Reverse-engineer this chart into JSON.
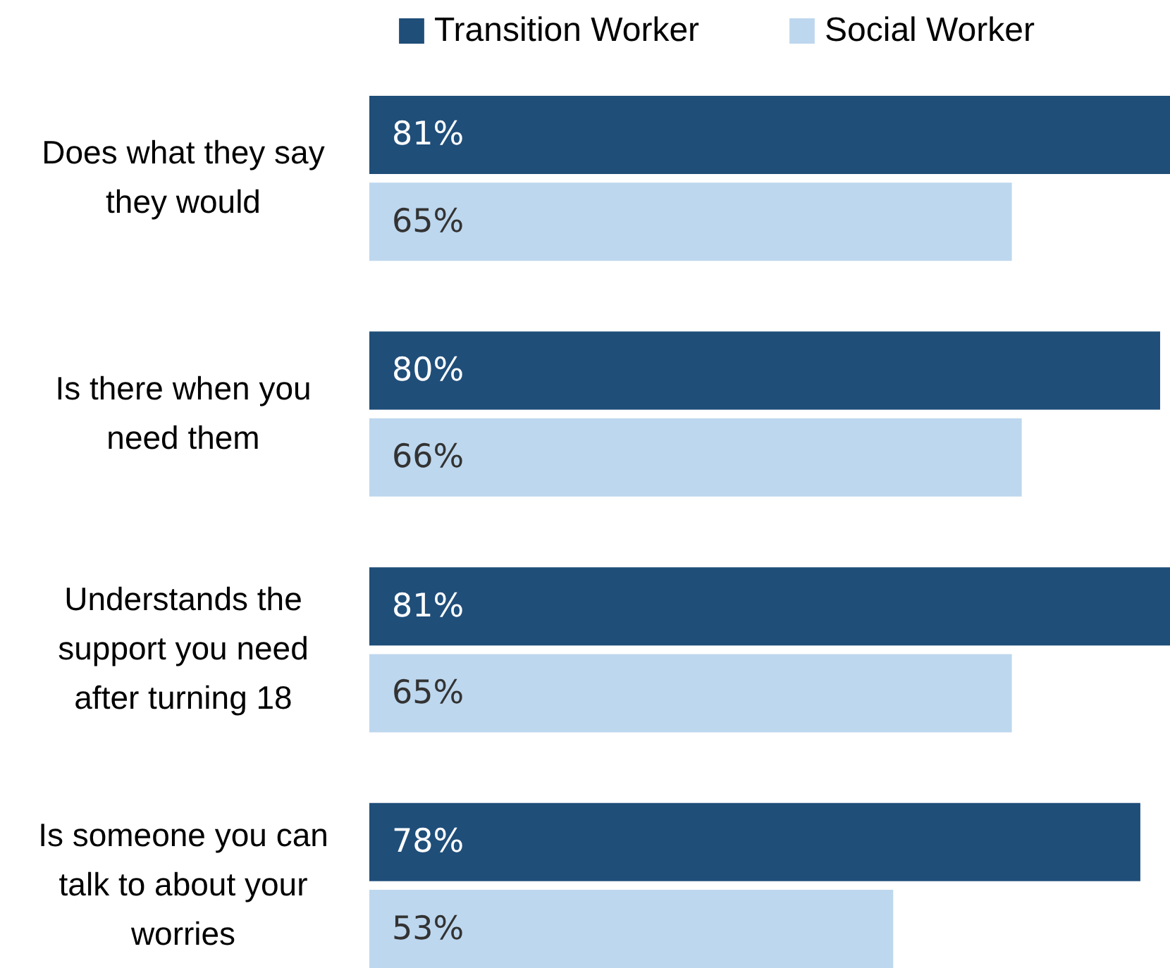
{
  "chart_data": {
    "type": "bar",
    "orientation": "horizontal",
    "legend": "top",
    "categories": [
      "Does what they say they would",
      "Is there when you need them",
      "Understands the support you need after turning 18",
      "Is someone you can talk to about your worries"
    ],
    "series": [
      {
        "name": "Transition Worker",
        "color": "#1f4e79",
        "values": [
          81,
          80,
          81,
          78
        ],
        "value_labels": [
          "81%",
          "80%",
          "81%",
          "78%"
        ]
      },
      {
        "name": "Social Worker",
        "color": "#bdd7ee",
        "values": [
          65,
          66,
          65,
          53
        ],
        "value_labels": [
          "65%",
          "66%",
          "65%",
          "53%"
        ]
      }
    ]
  }
}
